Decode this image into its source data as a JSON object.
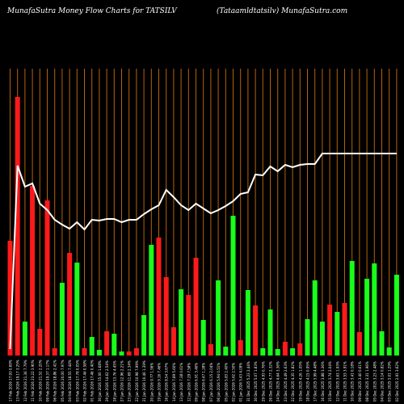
{
  "header": {
    "left": "MunafaSutra  Money Flow  Charts for TATSILV",
    "right": "(Tataamldtatsilv) MunafaSutra.com"
  },
  "colors": {
    "background": "#000000",
    "grid": "#b8620a",
    "up": "#1aff1a",
    "down": "#ff1a1a",
    "line": "#ffffff",
    "text": "#ffffff"
  },
  "chart_data": {
    "type": "bar",
    "title": "MunafaSutra  Money Flow  Charts for TATSILV",
    "subtitle": "(Tataamldtatsilv) MunafaSutra.com",
    "xlabel": "",
    "ylabel": "",
    "grid": true,
    "categories": [
      "17 Feb 2026",
      "13 Feb 2026",
      "12 Feb 2026",
      "11 Feb 2026",
      "10 Feb 2026",
      "09 Feb 2026",
      "06 Feb 2026",
      "05 Feb 2026",
      "04 Feb 2026",
      "03 Feb 2026",
      "02 Feb 2026",
      "01 Feb 2026",
      "30 Jan 2026",
      "29 Jan 2026",
      "28 Jan 2026",
      "27 Jan 2026",
      "23 Jan 2026",
      "22 Jan 2026",
      "21 Jan 2026",
      "20 Jan 2026",
      "19 Jan 2026",
      "16 Jan 2026",
      "14 Jan 2026",
      "13 Jan 2026",
      "12 Jan 2026",
      "09 Jan 2026",
      "08 Jan 2026",
      "07 Jan 2026",
      "06 Jan 2026",
      "05 Jan 2026",
      "02 Jan 2026",
      "01 Jan 2026",
      "31 Dec 2025",
      "30 Dec 2025",
      "29 Dec 2025",
      "26 Dec 2025",
      "24 Dec 2025",
      "23 Dec 2025",
      "22 Dec 2025",
      "19 Dec 2025",
      "18 Dec 2025",
      "17 Dec 2025",
      "16 Dec 2025",
      "15 Dec 2025",
      "12 Dec 2025",
      "11 Dec 2025",
      "10 Dec 2025",
      "09 Dec 2025",
      "08 Dec 2025",
      "05 Dec 2025",
      "04 Dec 2025",
      "03 Dec 2025",
      "02 Dec 2025"
    ],
    "tick_labels": [
      "17.93 0.69%",
      "19.17 3.25%",
      "21.36 7.79%",
      "23.22 3.90%",
      "21.52 2.20%",
      "19.37 1.17%",
      "18.86 2.41%",
      "20.00 7.97%",
      "18.55 7.44%",
      "17.78 0.05%",
      "17.46 0.58%",
      "17.46 0.40%",
      "15.00 1.68%",
      "14.62 2.54%",
      "13.76 4.45%",
      "12.96 2.21%",
      "11.69 2.34%",
      "10.98 7.99%",
      "10.46 1.39%",
      "9.77 1.56%",
      "9.16 7.46%",
      "8.54 3.67%",
      "7.89 5.60%",
      "7.38 0.61%",
      "7.29 7.58%",
      "6.91 3.46%",
      "6.47 1.28%",
      "6.15 2.04%",
      "5.94 0.51%",
      "5.83 2.40%",
      "5.62 2.50%",
      "5.43 4.09%",
      "5.23 2.44%",
      "5.07 1.83%",
      "4.93 0.76%",
      "4.77 2.32%",
      "4.64 3.36%",
      "4.49 2.63%",
      "4.35 1.82%",
      "4.26 1.05%",
      "4.15 0.95%",
      "3.99 4.48%",
      "3.88 3.36%",
      "3.74 2.04%",
      "3.63 1.93%",
      "3.53 3.91%",
      "3.41 0.18%",
      "3.40 0.61%",
      "3.31 1.96%",
      "3.23 2.48%",
      "3.14 0.82%",
      "3.01 1.29%",
      "2.91 3.62%"
    ],
    "series": [
      {
        "values": [
          142,
          320,
          42,
          210,
          33,
          192,
          9,
          90,
          127,
          115,
          9,
          23,
          7,
          30,
          27,
          5,
          5,
          9,
          50,
          137,
          146,
          97,
          35,
          82,
          75,
          121,
          44,
          14,
          93,
          11,
          173,
          19,
          81,
          62,
          9,
          57,
          8,
          17,
          9,
          15,
          45,
          93,
          42,
          63,
          54,
          65,
          117,
          29,
          95,
          114,
          30,
          10,
          100
        ],
        "directions": [
          "down",
          "down",
          "up",
          "down",
          "down",
          "down",
          "down",
          "up",
          "down",
          "up",
          "down",
          "up",
          "up",
          "down",
          "up",
          "up",
          "down",
          "down",
          "up",
          "up",
          "down",
          "down",
          "down",
          "up",
          "down",
          "down",
          "up",
          "down",
          "up",
          "up",
          "up",
          "down",
          "up",
          "down",
          "up",
          "up",
          "up",
          "down",
          "up",
          "down",
          "up",
          "up",
          "up",
          "down",
          "up",
          "down",
          "up",
          "down",
          "up",
          "up",
          "up",
          "up",
          "up"
        ]
      },
      {
        "values": [
          8,
          235,
          209,
          213,
          188,
          180,
          168,
          162,
          157,
          165,
          156,
          168,
          167,
          169,
          169,
          165,
          168,
          168,
          175,
          181,
          186,
          205,
          196,
          186,
          180,
          188,
          182,
          176,
          180,
          185,
          191,
          200,
          202,
          224,
          223,
          234,
          228,
          236,
          233,
          236,
          237,
          237,
          250,
          250,
          250,
          250,
          250,
          250,
          250,
          250,
          250,
          250,
          250
        ]
      }
    ]
  }
}
